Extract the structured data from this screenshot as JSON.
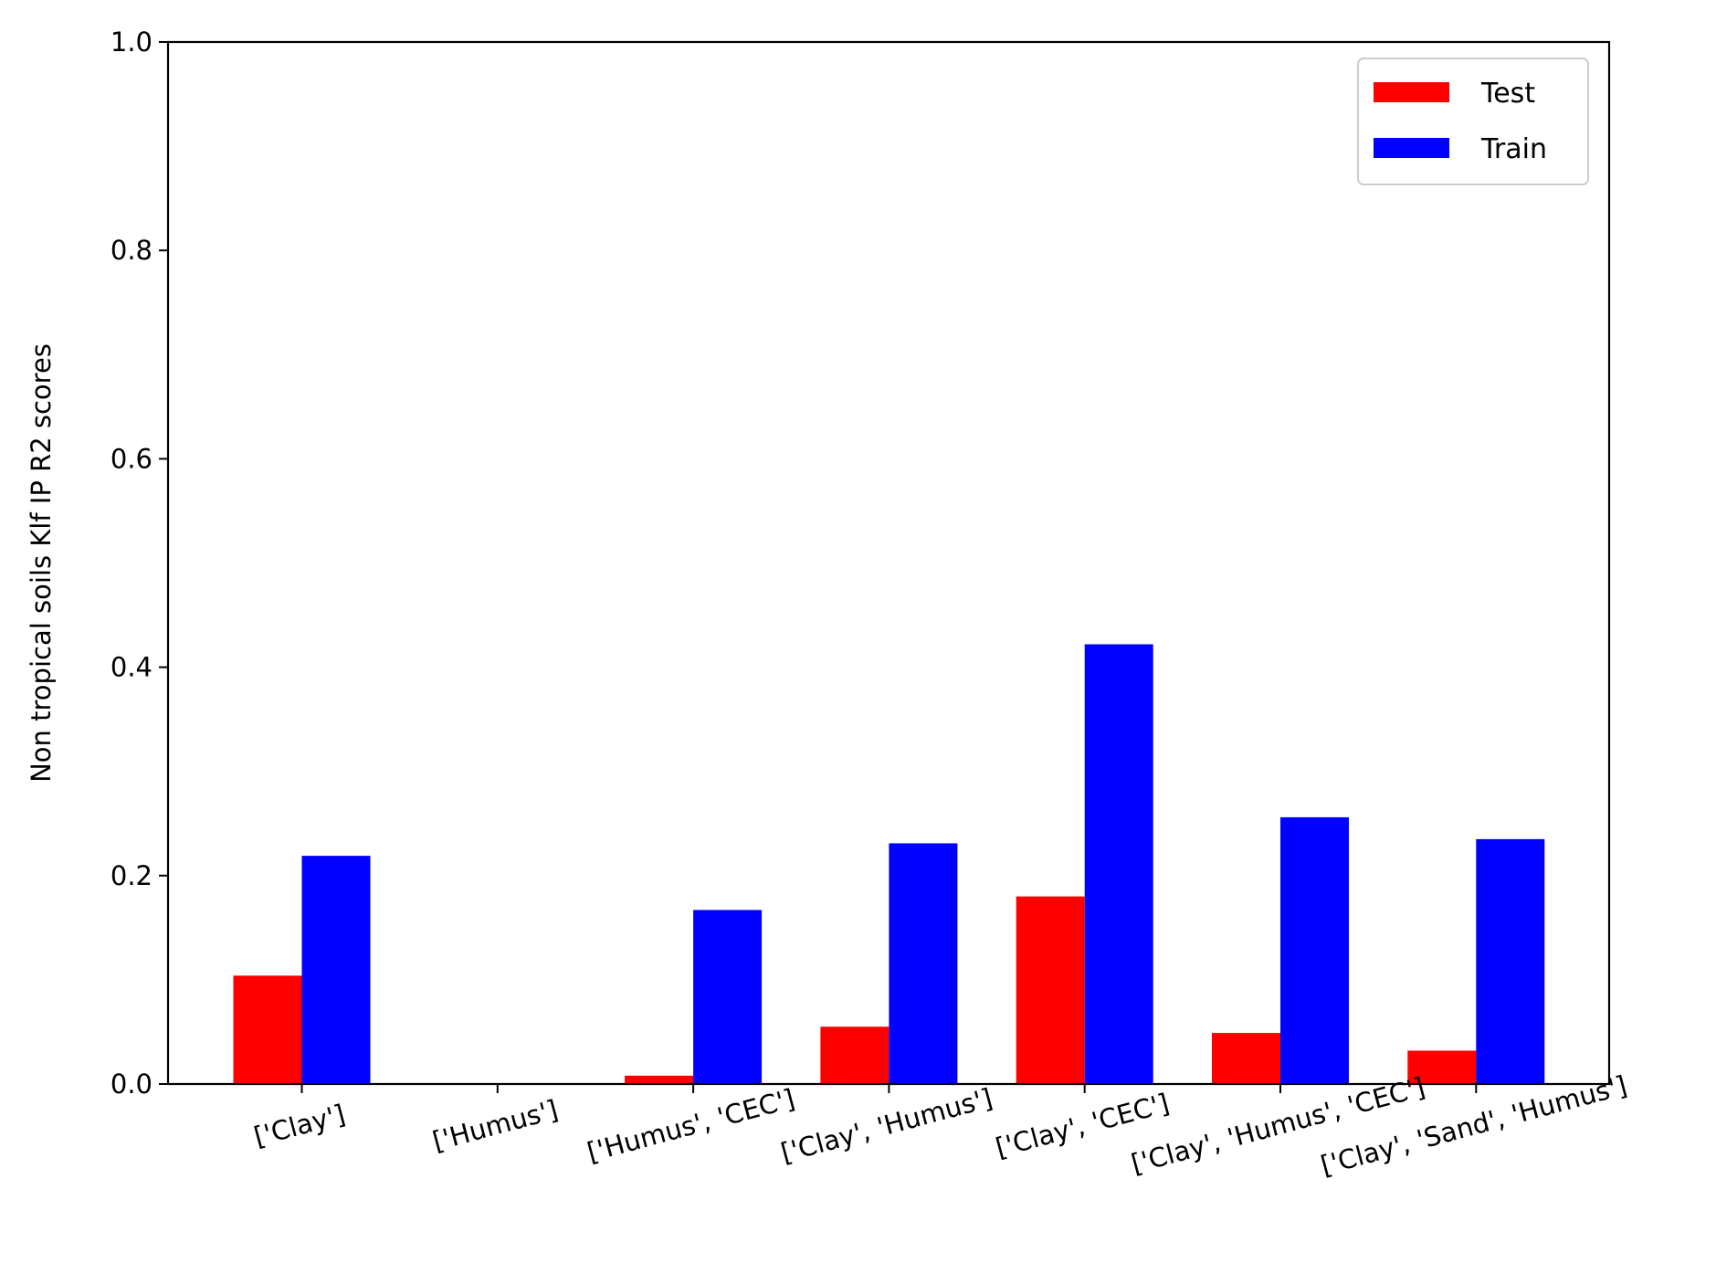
{
  "chart_data": {
    "type": "bar",
    "title": "",
    "xlabel": "",
    "ylabel": "Non tropical soils Klf IP R2 scores",
    "ylim": [
      0,
      1.0
    ],
    "yticks": [
      "0.0",
      "0.2",
      "0.4",
      "0.6",
      "0.8",
      "1.0"
    ],
    "categories": [
      "['Clay']",
      "['Humus']",
      "['Humus', 'CEC']",
      "['Clay', 'Humus']",
      "['Clay', 'CEC']",
      "['Clay', 'Humus', 'CEC']",
      "['Clay', 'Sand', 'Humus']"
    ],
    "series": [
      {
        "name": "Test",
        "color": "#ff0000",
        "values": [
          0.104,
          0.0,
          0.008,
          0.055,
          0.18,
          0.049,
          0.032
        ]
      },
      {
        "name": "Train",
        "color": "#0000ff",
        "values": [
          0.219,
          0.0,
          0.167,
          0.231,
          0.422,
          0.256,
          0.235
        ]
      }
    ],
    "legend": {
      "placement": "top-right"
    },
    "grid": false
  }
}
